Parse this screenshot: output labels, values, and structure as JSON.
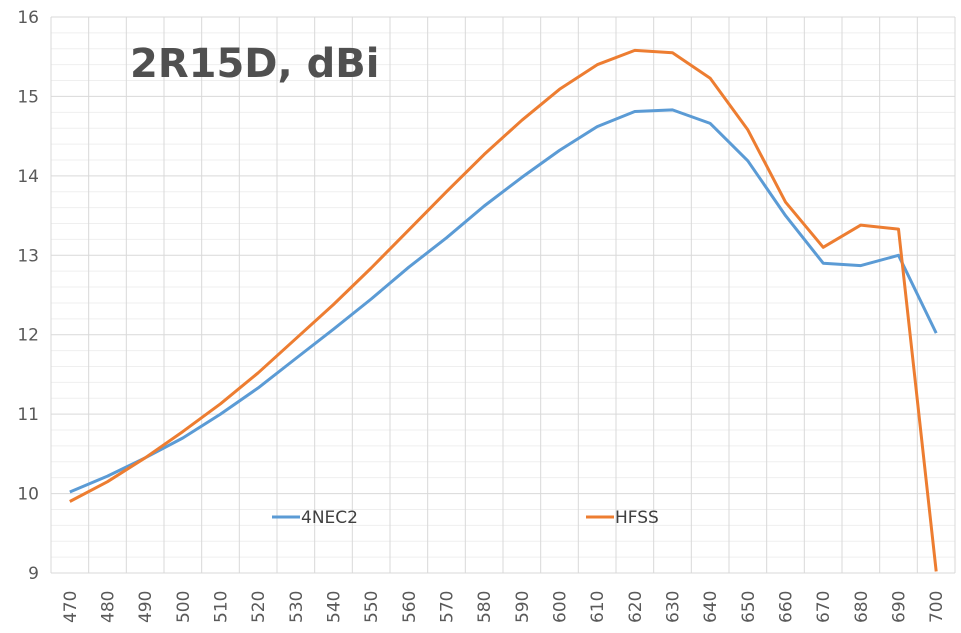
{
  "chart_data": {
    "type": "line",
    "title": "2R15D, dBi",
    "xlabel": "",
    "ylabel": "",
    "categories": [
      "470",
      "480",
      "490",
      "500",
      "510",
      "520",
      "530",
      "540",
      "550",
      "560",
      "570",
      "580",
      "590",
      "600",
      "610",
      "620",
      "630",
      "640",
      "650",
      "660",
      "670",
      "680",
      "690",
      "700"
    ],
    "ylim": [
      9,
      16
    ],
    "yticks": [
      "9",
      "10",
      "11",
      "12",
      "13",
      "14",
      "15",
      "16"
    ],
    "grid": true,
    "legend_placement": "bottom-inside",
    "series": [
      {
        "name": "4NEC2",
        "color": "#5B9BD5",
        "values": [
          10.02,
          10.22,
          10.45,
          10.7,
          11.0,
          11.33,
          11.7,
          12.07,
          12.45,
          12.85,
          13.22,
          13.62,
          13.98,
          14.32,
          14.62,
          14.81,
          14.83,
          14.66,
          14.19,
          13.5,
          12.9,
          12.87,
          13.0,
          12.02
        ]
      },
      {
        "name": "HFSS",
        "color": "#ED7D31",
        "values": [
          9.9,
          10.15,
          10.45,
          10.78,
          11.13,
          11.52,
          11.95,
          12.38,
          12.84,
          13.32,
          13.8,
          14.27,
          14.7,
          15.09,
          15.4,
          15.58,
          15.55,
          15.23,
          14.58,
          13.67,
          13.1,
          13.38,
          13.33,
          9.02
        ]
      }
    ]
  }
}
